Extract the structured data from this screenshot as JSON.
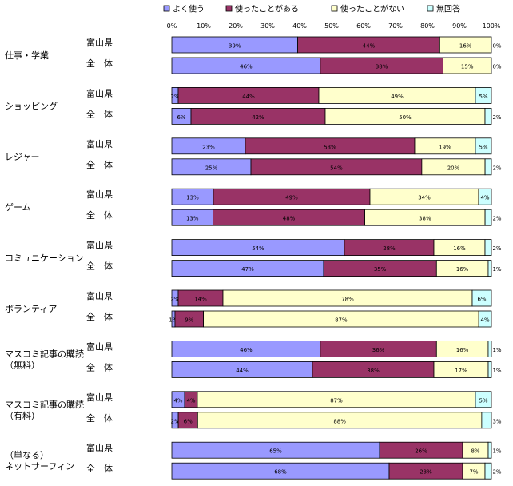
{
  "chart_data": {
    "type": "bar",
    "orientation": "horizontal",
    "stacked": true,
    "percent_stacked": true,
    "legend_position": "top",
    "xlim": [
      0,
      100
    ],
    "x_ticks": [
      "0%",
      "10%",
      "20%",
      "30%",
      "40%",
      "50%",
      "60%",
      "70%",
      "80%",
      "90%",
      "100%"
    ],
    "series": [
      {
        "name": "よく使う",
        "color": "#9999ff"
      },
      {
        "name": "使ったことがある",
        "color": "#993366"
      },
      {
        "name": "使ったことがない",
        "color": "#ffffcc"
      },
      {
        "name": "無回答",
        "color": "#ccffff"
      }
    ],
    "groups": [
      {
        "label": [
          "仕事・学業"
        ],
        "rows": [
          {
            "name": "富山県",
            "values": [
              39,
              44,
              16,
              0
            ],
            "labels": [
              "39%",
              "44%",
              "16%",
              "0%"
            ]
          },
          {
            "name": "全　体",
            "values": [
              46,
              38,
              15,
              0
            ],
            "labels": [
              "46%",
              "38%",
              "15%",
              "0%"
            ]
          }
        ]
      },
      {
        "label": [
          "ショッピング"
        ],
        "rows": [
          {
            "name": "富山県",
            "values": [
              2,
              44,
              49,
              5
            ],
            "labels": [
              "2%",
              "44%",
              "49%",
              "5%"
            ]
          },
          {
            "name": "全　体",
            "values": [
              6,
              42,
              50,
              2
            ],
            "labels": [
              "6%",
              "42%",
              "50%",
              "2%"
            ]
          }
        ]
      },
      {
        "label": [
          "レジャー"
        ],
        "rows": [
          {
            "name": "富山県",
            "values": [
              23,
              53,
              19,
              5
            ],
            "labels": [
              "23%",
              "53%",
              "19%",
              "5%"
            ]
          },
          {
            "name": "全　体",
            "values": [
              25,
              54,
              20,
              2
            ],
            "labels": [
              "25%",
              "54%",
              "20%",
              "2%"
            ]
          }
        ]
      },
      {
        "label": [
          "ゲーム"
        ],
        "rows": [
          {
            "name": "富山県",
            "values": [
              13,
              49,
              34,
              4
            ],
            "labels": [
              "13%",
              "49%",
              "34%",
              "4%"
            ]
          },
          {
            "name": "全　体",
            "values": [
              13,
              48,
              38,
              2
            ],
            "labels": [
              "13%",
              "48%",
              "38%",
              "2%"
            ]
          }
        ]
      },
      {
        "label": [
          "コミュニケーション"
        ],
        "rows": [
          {
            "name": "富山県",
            "values": [
              54,
              28,
              16,
              2
            ],
            "labels": [
              "54%",
              "28%",
              "16%",
              "2%"
            ]
          },
          {
            "name": "全　体",
            "values": [
              47,
              35,
              16,
              1
            ],
            "labels": [
              "47%",
              "35%",
              "16%",
              "1%"
            ]
          }
        ]
      },
      {
        "label": [
          "ボランティア"
        ],
        "rows": [
          {
            "name": "富山県",
            "values": [
              2,
              14,
              78,
              6
            ],
            "labels": [
              "2%",
              "14%",
              "78%",
              "6%"
            ]
          },
          {
            "name": "全　体",
            "values": [
              1,
              9,
              87,
              4
            ],
            "labels": [
              "1%",
              "9%",
              "87%",
              "4%"
            ]
          }
        ]
      },
      {
        "label": [
          "マスコミ記事の購読",
          "（無料）"
        ],
        "rows": [
          {
            "name": "富山県",
            "values": [
              46,
              36,
              16,
              1
            ],
            "labels": [
              "46%",
              "36%",
              "16%",
              "1%"
            ]
          },
          {
            "name": "全　体",
            "values": [
              44,
              38,
              17,
              1
            ],
            "labels": [
              "44%",
              "38%",
              "17%",
              "1%"
            ]
          }
        ]
      },
      {
        "label": [
          "マスコミ記事の購読",
          "（有料）"
        ],
        "rows": [
          {
            "name": "富山県",
            "values": [
              4,
              4,
              87,
              5
            ],
            "labels": [
              "4%",
              "4%",
              "87%",
              "5%"
            ]
          },
          {
            "name": "全　体",
            "values": [
              2,
              6,
              88,
              3
            ],
            "labels": [
              "2%",
              "6%",
              "88%",
              "3%"
            ]
          }
        ]
      },
      {
        "label": [
          "（単なる）",
          "ネットサーフィン"
        ],
        "rows": [
          {
            "name": "富山県",
            "values": [
              65,
              26,
              8,
              1
            ],
            "labels": [
              "65%",
              "26%",
              "8%",
              "1%"
            ]
          },
          {
            "name": "全　体",
            "values": [
              68,
              23,
              7,
              2
            ],
            "labels": [
              "68%",
              "23%",
              "7%",
              "2%"
            ]
          }
        ]
      }
    ]
  }
}
